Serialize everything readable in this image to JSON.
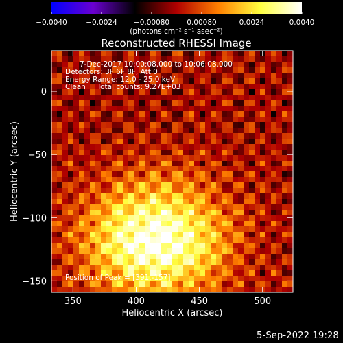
{
  "chart_data": {
    "type": "heatmap",
    "title": "Reconstructed RHESSI Image",
    "xlabel": "Heliocentric X (arcsec)",
    "ylabel": "Heliocentric Y (arcsec)",
    "xlim": [
      333,
      524
    ],
    "ylim": [
      -159,
      32
    ],
    "xticks": [
      350,
      400,
      450,
      500
    ],
    "yticks": [
      0,
      -50,
      -100,
      -150
    ],
    "colorbar": {
      "label": "(photons cm⁻² s⁻¹ asec⁻²)",
      "range": [
        -0.004,
        0.004
      ],
      "tick_labels": [
        "−0.0040",
        "−0.0024",
        "−0.00080",
        "0.00080",
        "0.0024",
        "0.0040"
      ],
      "colors": [
        "#0000ff",
        "#6a00d0",
        "#000000",
        "#b00000",
        "#ff8000",
        "#ffff40",
        "#ffffff"
      ]
    },
    "annotations": [
      "7-Dec-2017 10:00:08.000 to 10:06:08.000",
      "Detectors: 3F 6F 8F, Att 0",
      "Energy Range: 12.0 - 25.0 keV",
      "Clean     Total counts: 9.27E+03"
    ],
    "peak_label": "Position of Peak = [391,-157]",
    "peak": [
      391,
      -157
    ],
    "source": {
      "center": [
        415,
        -118
      ],
      "sigma": [
        38,
        32
      ],
      "peak_value": 0.004
    }
  },
  "footer": {
    "date": "5-Sep-2022 19:28"
  }
}
